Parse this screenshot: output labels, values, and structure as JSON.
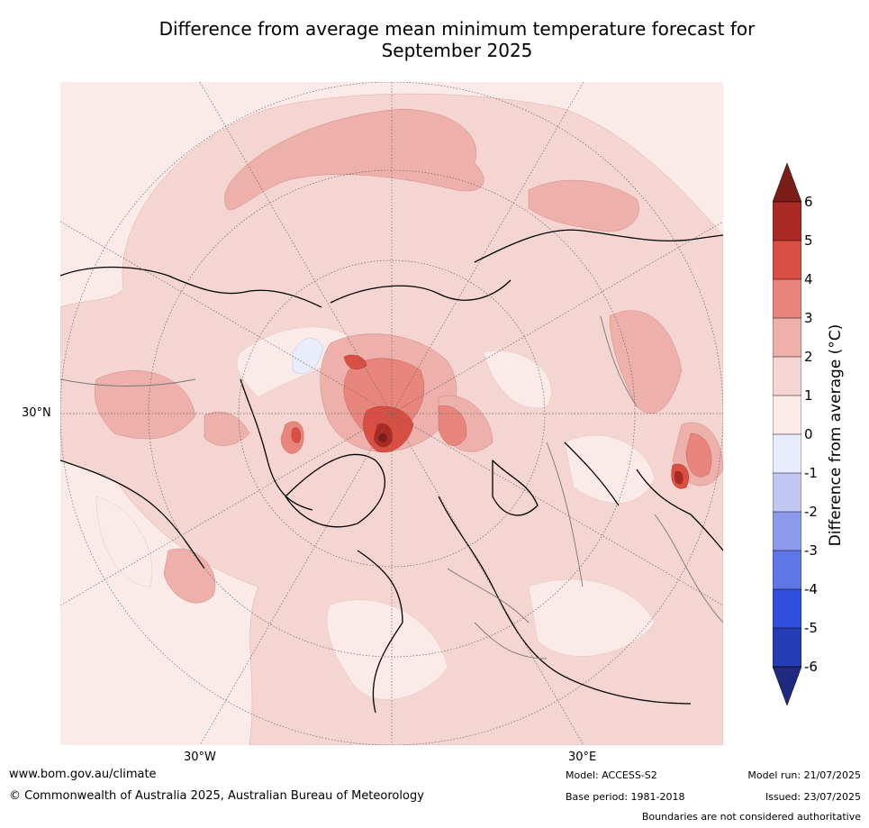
{
  "title_line1": "Difference from average mean minimum temperature forecast for",
  "title_line2": "September 2025",
  "map": {
    "latitude_label": "30°N",
    "longitude_labels": [
      "30°W",
      "30°E"
    ]
  },
  "colorbar": {
    "label": "Difference from average (°C)",
    "ticks": [
      "6",
      "5",
      "4",
      "3",
      "2",
      "1",
      "0",
      "-1",
      "-2",
      "-3",
      "-4",
      "-5",
      "-6"
    ],
    "colors": {
      "above_6": "#7b1d19",
      "5_to_6": "#a92a25",
      "4_to_5": "#d94f43",
      "3_to_4": "#e8857c",
      "2_to_3": "#edb0aa",
      "1_to_2": "#f5d5d1",
      "0_to_1": "#fbebe8",
      "m1_to_0": "#e8ecfb",
      "m2_to_m1": "#c0c8f2",
      "m3_to_m2": "#8c9aec",
      "m4_to_m3": "#5f76e6",
      "m5_to_m4": "#304fdd",
      "m6_to_m5": "#253db4",
      "below_m6": "#1e2a80"
    }
  },
  "footer": {
    "website": "www.bom.gov.au/climate",
    "copyright": "© Commonwealth of Australia 2025, Australian Bureau of Meteorology",
    "model": "Model: ACCESS-S2",
    "base_period": "Base period: 1981-2018",
    "model_run": "Model run: 21/07/2025",
    "issued": "Issued: 23/07/2025",
    "boundaries": "Boundaries are not considered authoritative"
  }
}
